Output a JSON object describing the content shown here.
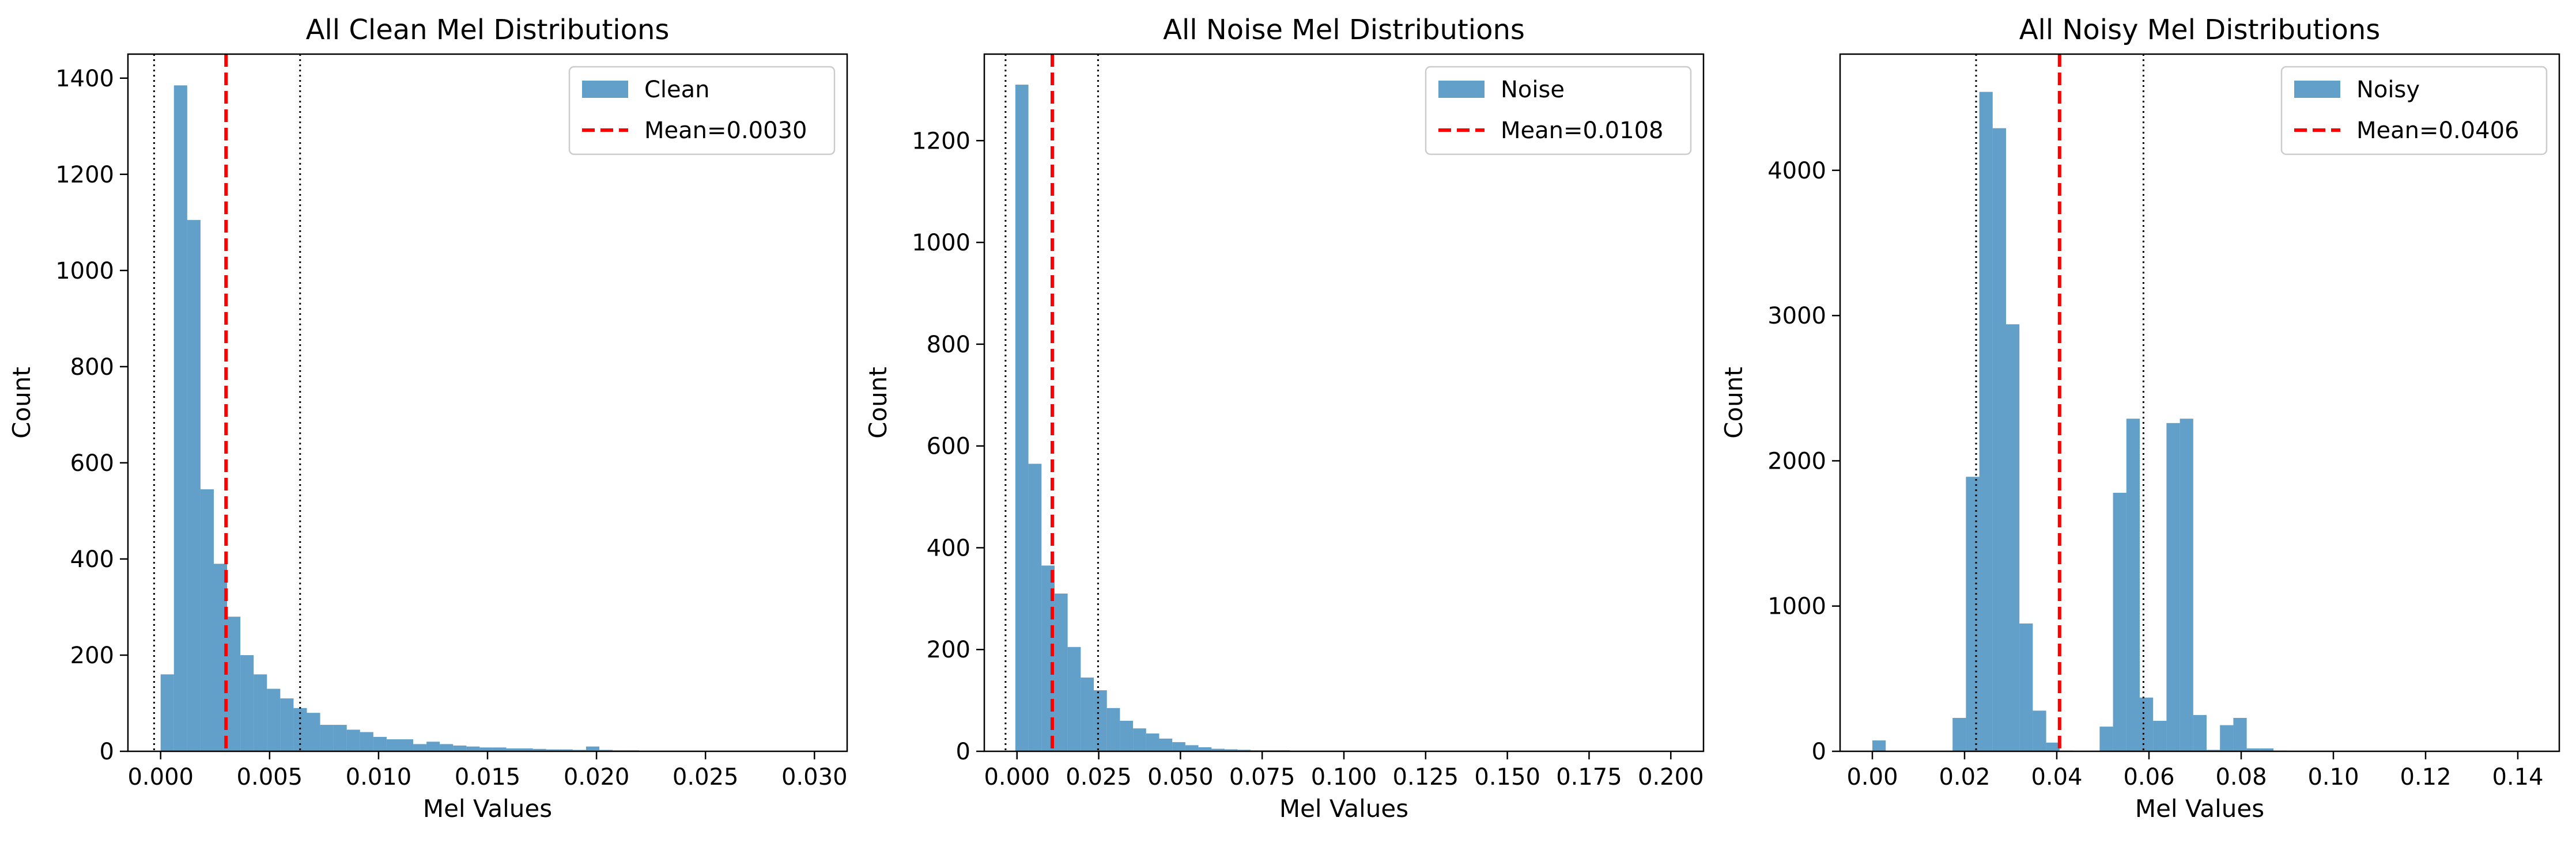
{
  "chart_data": [
    {
      "type": "bar",
      "title": "All Clean Mel Distributions",
      "xlabel": "Mel Values",
      "ylabel": "Count",
      "xlim": [
        -0.0015,
        0.0315
      ],
      "ylim": [
        0,
        1450
      ],
      "xticks": [
        0.0,
        0.005,
        0.01,
        0.015,
        0.02,
        0.025,
        0.03
      ],
      "xtick_labels": [
        "0.000",
        "0.005",
        "0.010",
        "0.015",
        "0.020",
        "0.025",
        "0.030"
      ],
      "yticks": [
        0,
        200,
        400,
        600,
        800,
        1000,
        1200,
        1400
      ],
      "ytick_labels": [
        "0",
        "200",
        "400",
        "600",
        "800",
        "1000",
        "1200",
        "1400"
      ],
      "bins": {
        "start": 0.0,
        "width": 0.00061
      },
      "values": [
        160,
        1385,
        1105,
        545,
        390,
        280,
        200,
        160,
        130,
        110,
        90,
        80,
        55,
        55,
        45,
        40,
        30,
        25,
        25,
        15,
        20,
        15,
        12,
        10,
        8,
        8,
        6,
        6,
        5,
        4,
        4,
        3,
        10,
        3,
        2,
        2,
        1,
        1,
        1,
        1,
        1,
        1,
        1,
        1,
        1,
        1,
        1,
        1,
        1,
        1
      ],
      "series_name": "Clean",
      "bar_color": "#1f77b4",
      "bar_alpha": 0.7,
      "mean": 0.003,
      "mean_label": "Mean=0.0030",
      "mean_color": "#ff0000",
      "dotted_lines": [
        -0.0003,
        0.0064
      ],
      "legend": "top-right"
    },
    {
      "type": "bar",
      "title": "All Noise Mel Distributions",
      "xlabel": "Mel Values",
      "ylabel": "Count",
      "xlim": [
        -0.01,
        0.21
      ],
      "ylim": [
        0,
        1370
      ],
      "xticks": [
        0.0,
        0.025,
        0.05,
        0.075,
        0.1,
        0.125,
        0.15,
        0.175,
        0.2
      ],
      "xtick_labels": [
        "0.000",
        "0.025",
        "0.050",
        "0.075",
        "0.100",
        "0.125",
        "0.150",
        "0.175",
        "0.200"
      ],
      "yticks": [
        0,
        200,
        400,
        600,
        800,
        1000,
        1200
      ],
      "ytick_labels": [
        "0",
        "200",
        "400",
        "600",
        "800",
        "1000",
        "1200"
      ],
      "bins": {
        "start": -0.0005,
        "width": 0.004
      },
      "values": [
        1310,
        565,
        365,
        310,
        205,
        145,
        120,
        85,
        60,
        45,
        35,
        25,
        18,
        12,
        8,
        5,
        4,
        3,
        2,
        2,
        2,
        1,
        1,
        1,
        1,
        1,
        1,
        1,
        1,
        1,
        1,
        1,
        1,
        1,
        1,
        1,
        1,
        1,
        1,
        1,
        1,
        1,
        1,
        1,
        1,
        1,
        1,
        1,
        1,
        1
      ],
      "series_name": "Noise",
      "bar_color": "#1f77b4",
      "bar_alpha": 0.7,
      "mean": 0.0108,
      "mean_label": "Mean=0.0108",
      "mean_color": "#ff0000",
      "dotted_lines": [
        -0.0035,
        0.0248
      ],
      "legend": "top-right"
    },
    {
      "type": "bar",
      "title": "All Noisy Mel Distributions",
      "xlabel": "Mel Values",
      "ylabel": "Count",
      "xlim": [
        -0.007,
        0.149
      ],
      "ylim": [
        0,
        4800
      ],
      "xticks": [
        0.0,
        0.02,
        0.04,
        0.06,
        0.08,
        0.1,
        0.12,
        0.14
      ],
      "xtick_labels": [
        "0.00",
        "0.02",
        "0.04",
        "0.06",
        "0.08",
        "0.10",
        "0.12",
        "0.14"
      ],
      "yticks": [
        0,
        1000,
        2000,
        3000,
        4000
      ],
      "ytick_labels": [
        "0",
        "1000",
        "2000",
        "3000",
        "4000"
      ],
      "bins": {
        "start": 0.0,
        "width": 0.0029
      },
      "values": [
        75,
        0,
        0,
        0,
        0,
        0,
        230,
        1890,
        4540,
        4290,
        2940,
        880,
        280,
        60,
        5,
        0,
        0,
        170,
        1780,
        2290,
        370,
        210,
        2260,
        2290,
        250,
        10,
        180,
        230,
        20,
        20,
        5,
        2,
        2,
        2,
        1,
        1,
        1,
        1,
        1,
        1,
        1,
        1,
        1,
        1,
        1,
        1,
        1,
        1,
        1,
        1
      ],
      "series_name": "Noisy",
      "bar_color": "#1f77b4",
      "bar_alpha": 0.7,
      "mean": 0.0406,
      "mean_label": "Mean=0.0406",
      "mean_color": "#ff0000",
      "dotted_lines": [
        0.0225,
        0.0588
      ],
      "legend": "top-right"
    }
  ]
}
